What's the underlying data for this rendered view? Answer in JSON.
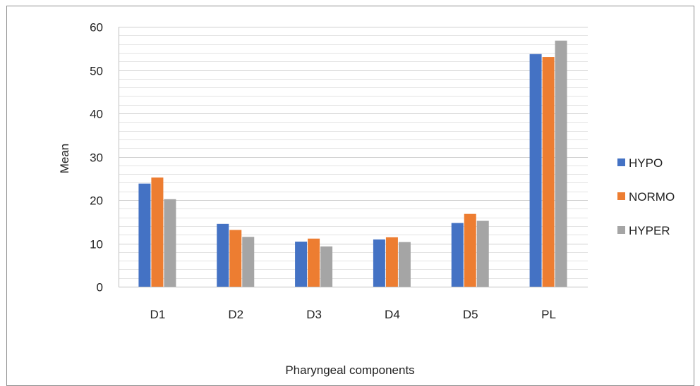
{
  "chart_data": {
    "type": "bar",
    "title": "",
    "xlabel": "Pharyngeal components",
    "ylabel": "Mean",
    "categories": [
      "D1",
      "D2",
      "D3",
      "D4",
      "D5",
      "PL"
    ],
    "series": [
      {
        "name": "HYPO",
        "color": "#4472c4",
        "values": [
          23.8,
          14.5,
          10.4,
          10.9,
          14.7,
          53.7
        ]
      },
      {
        "name": "NORMO",
        "color": "#ed7d31",
        "values": [
          25.2,
          13.1,
          11.1,
          11.4,
          16.8,
          53.0
        ]
      },
      {
        "name": "HYPER",
        "color": "#a5a5a5",
        "values": [
          20.2,
          11.5,
          9.3,
          10.3,
          15.2,
          56.8
        ]
      }
    ],
    "ylim": [
      0,
      60
    ],
    "yticks": [
      0,
      10,
      20,
      30,
      40,
      50,
      60
    ],
    "minor_gridlines_step": 2,
    "grid": true,
    "legend_position": "right"
  }
}
